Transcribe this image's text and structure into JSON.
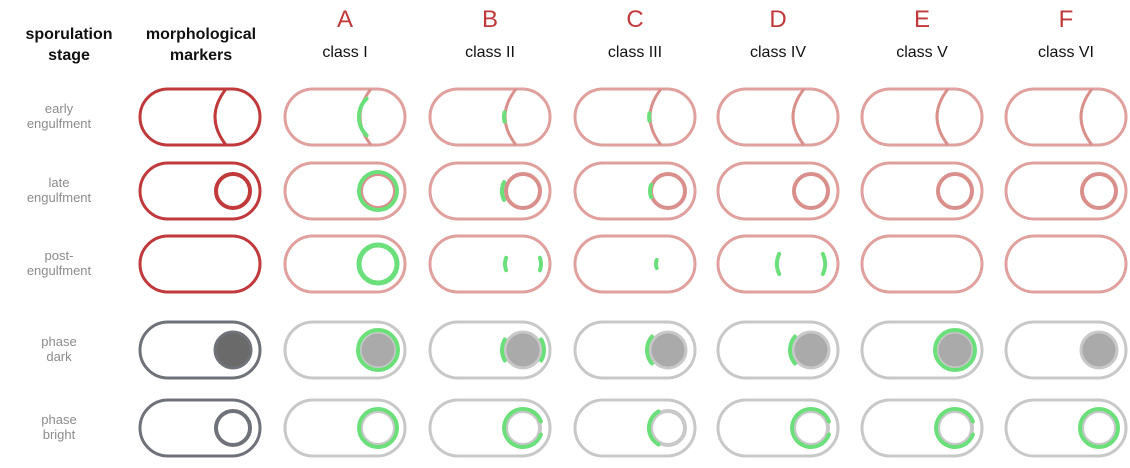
{
  "header": {
    "stage_label_line1": "sporulation",
    "stage_label_line2": "stage",
    "markers_label_line1": "morphological",
    "markers_label_line2": "markers"
  },
  "columns": [
    {
      "letter": "A",
      "label": "class I"
    },
    {
      "letter": "B",
      "label": "class II"
    },
    {
      "letter": "C",
      "label": "class III"
    },
    {
      "letter": "D",
      "label": "class IV"
    },
    {
      "letter": "E",
      "label": "class V"
    },
    {
      "letter": "F",
      "label": "class VI"
    }
  ],
  "rows": [
    {
      "line1": "early",
      "line2": "engulfment",
      "kind": "engulf-early",
      "color": "#c0393b"
    },
    {
      "line1": "late",
      "line2": "engulfment",
      "kind": "engulf-late",
      "color": "#c0393b"
    },
    {
      "line1": "post-",
      "line2": "engulfment",
      "kind": "post",
      "color": "#c0393b"
    },
    {
      "line1": "phase",
      "line2": "dark",
      "kind": "phase-dark",
      "color": "#6f7278"
    },
    {
      "line1": "phase",
      "line2": "bright",
      "kind": "phase-bright",
      "color": "#6f7278"
    }
  ],
  "colors": {
    "marker_red": "#c0393b",
    "class_red": "#e0a09d",
    "class_red_inner": "#d9908c",
    "marker_gray": "#6f7278",
    "class_gray": "#c8c8c8",
    "dark_fill_marker": "#6a6a6a",
    "dark_fill_class": "#aaaaaa",
    "green": "#6be07a"
  },
  "green_marks": {
    "engulf-early": [
      "full",
      "partial",
      "small",
      "none",
      "none",
      "none"
    ],
    "engulf-late": [
      "full",
      "left-arc",
      "small-left",
      "none",
      "none",
      "none"
    ],
    "post": [
      "full-circle",
      "two-arcs",
      "tiny-arc",
      "wide-arcs",
      "none",
      "none"
    ],
    "phase-dark": [
      "full-ring",
      "side-arcs",
      "left-arc",
      "left-arc",
      "full-ring",
      "none"
    ],
    "phase-bright": [
      "full-ring",
      "mostly-ring",
      "left-arc",
      "mostly-ring",
      "mostly-ring",
      "full-ring"
    ]
  }
}
